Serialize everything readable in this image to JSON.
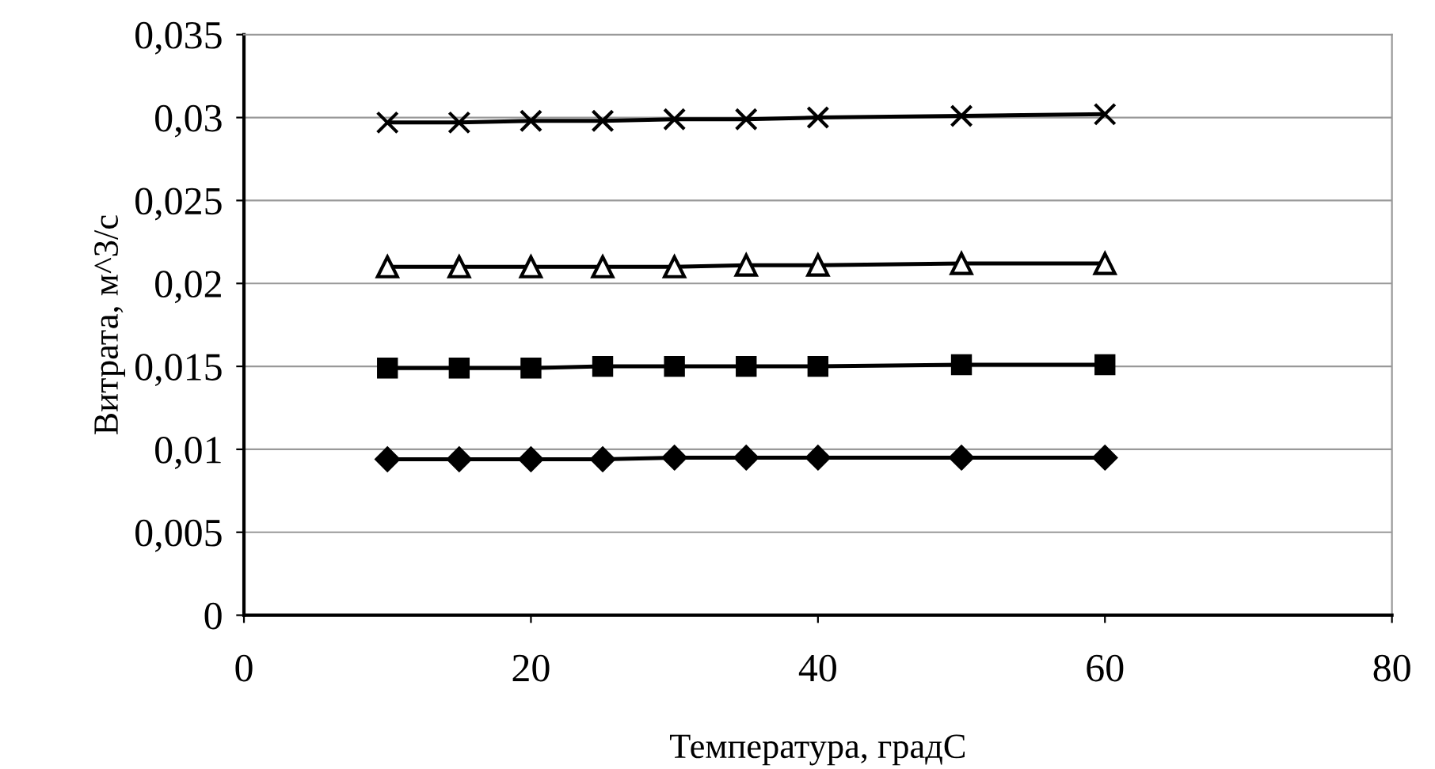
{
  "chart_data": {
    "type": "line",
    "xlabel": "Температура, градС",
    "ylabel": "Витрата, м^3/с",
    "x": [
      10,
      15,
      20,
      25,
      30,
      35,
      40,
      50,
      60
    ],
    "series": [
      {
        "color": "#000000",
        "marker": "diamond",
        "values": [
          0.0094,
          0.0094,
          0.0094,
          0.0094,
          0.0095,
          0.0095,
          0.0095,
          0.0095,
          0.0095
        ]
      },
      {
        "color": "#000000",
        "marker": "square",
        "values": [
          0.0149,
          0.0149,
          0.0149,
          0.015,
          0.015,
          0.015,
          0.015,
          0.0151,
          0.0151
        ]
      },
      {
        "color": "#000000",
        "marker": "triangle",
        "values": [
          0.021,
          0.021,
          0.021,
          0.021,
          0.021,
          0.0211,
          0.0211,
          0.0212,
          0.0212
        ]
      },
      {
        "color": "#000000",
        "marker": "cross",
        "values": [
          0.0297,
          0.0297,
          0.0298,
          0.0298,
          0.0299,
          0.0299,
          0.03,
          0.0301,
          0.0302
        ]
      }
    ],
    "xlim": [
      0,
      80
    ],
    "xticks": [
      0,
      20,
      40,
      60,
      80
    ],
    "ylim": [
      0,
      0.035
    ],
    "yticks": [
      {
        "value": 0,
        "label": "0"
      },
      {
        "value": 0.005,
        "label": "0,005"
      },
      {
        "value": 0.01,
        "label": "0,01"
      },
      {
        "value": 0.015,
        "label": "0,015"
      },
      {
        "value": 0.02,
        "label": "0,02"
      },
      {
        "value": 0.025,
        "label": "0,025"
      },
      {
        "value": 0.03,
        "label": "0,03"
      },
      {
        "value": 0.035,
        "label": "0,035"
      }
    ],
    "grid": "y",
    "legend": false,
    "line_style": "solid"
  }
}
